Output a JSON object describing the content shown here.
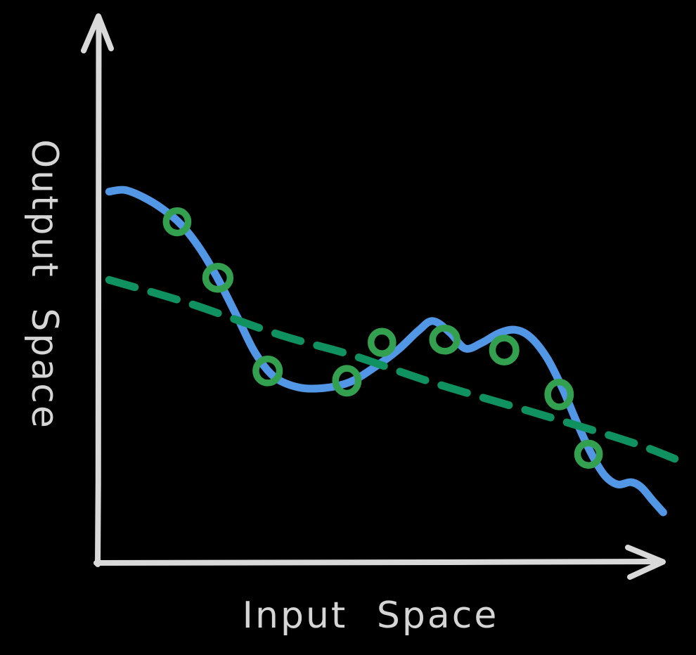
{
  "figure": {
    "background": "#000000",
    "axis_color": "#d9d9d9",
    "text_color": "#d5d5d5"
  },
  "chart_data": {
    "type": "line",
    "title": "",
    "xlabel": "Input Space",
    "ylabel": "Output Space",
    "x_range": [
      0,
      1
    ],
    "y_range": [
      0,
      1
    ],
    "grid": false,
    "legend": false,
    "axis_ticks": "none",
    "style": "hand-drawn sketch on black background",
    "series": [
      {
        "name": "blue-wiggly-fit-curve",
        "type": "line",
        "line_style": "solid",
        "color": "#5297e6",
        "stroke_width": 11,
        "points": [
          [
            0.019,
            0.676
          ],
          [
            0.047,
            0.679
          ],
          [
            0.081,
            0.665
          ],
          [
            0.114,
            0.644
          ],
          [
            0.147,
            0.615
          ],
          [
            0.18,
            0.571
          ],
          [
            0.211,
            0.517
          ],
          [
            0.246,
            0.446
          ],
          [
            0.277,
            0.382
          ],
          [
            0.311,
            0.338
          ],
          [
            0.354,
            0.319
          ],
          [
            0.4,
            0.318
          ],
          [
            0.445,
            0.329
          ],
          [
            0.487,
            0.355
          ],
          [
            0.529,
            0.387
          ],
          [
            0.566,
            0.423
          ],
          [
            0.591,
            0.44
          ],
          [
            0.621,
            0.419
          ],
          [
            0.648,
            0.39
          ],
          [
            0.677,
            0.4
          ],
          [
            0.708,
            0.418
          ],
          [
            0.737,
            0.424
          ],
          [
            0.764,
            0.41
          ],
          [
            0.793,
            0.372
          ],
          [
            0.82,
            0.317
          ],
          [
            0.845,
            0.256
          ],
          [
            0.87,
            0.2
          ],
          [
            0.894,
            0.159
          ],
          [
            0.917,
            0.142
          ],
          [
            0.941,
            0.146
          ],
          [
            0.959,
            0.137
          ],
          [
            0.979,
            0.113
          ],
          [
            0.998,
            0.091
          ]
        ]
      },
      {
        "name": "green-dashed-trend-line",
        "type": "line",
        "line_style": "dashed",
        "color": "#0f9160",
        "stroke_width": 11,
        "dash": [
          38,
          24
        ],
        "points": [
          [
            0.019,
            0.515
          ],
          [
            0.161,
            0.472
          ],
          [
            0.323,
            0.414
          ],
          [
            0.447,
            0.378
          ],
          [
            0.596,
            0.326
          ],
          [
            0.783,
            0.269
          ],
          [
            0.944,
            0.218
          ],
          [
            1.025,
            0.186
          ]
        ]
      },
      {
        "name": "green-ring-data-points",
        "type": "scatter",
        "marker": "ring",
        "color": "#32a04e",
        "marker_radius": 16.5,
        "marker_stroke_width": 9.5,
        "points": [
          [
            0.139,
            0.621
          ],
          [
            0.211,
            0.519
          ],
          [
            0.299,
            0.349
          ],
          [
            0.439,
            0.331
          ],
          [
            0.501,
            0.401
          ],
          [
            0.612,
            0.406
          ],
          [
            0.717,
            0.387
          ],
          [
            0.814,
            0.306
          ],
          [
            0.866,
            0.197
          ]
        ]
      }
    ]
  }
}
